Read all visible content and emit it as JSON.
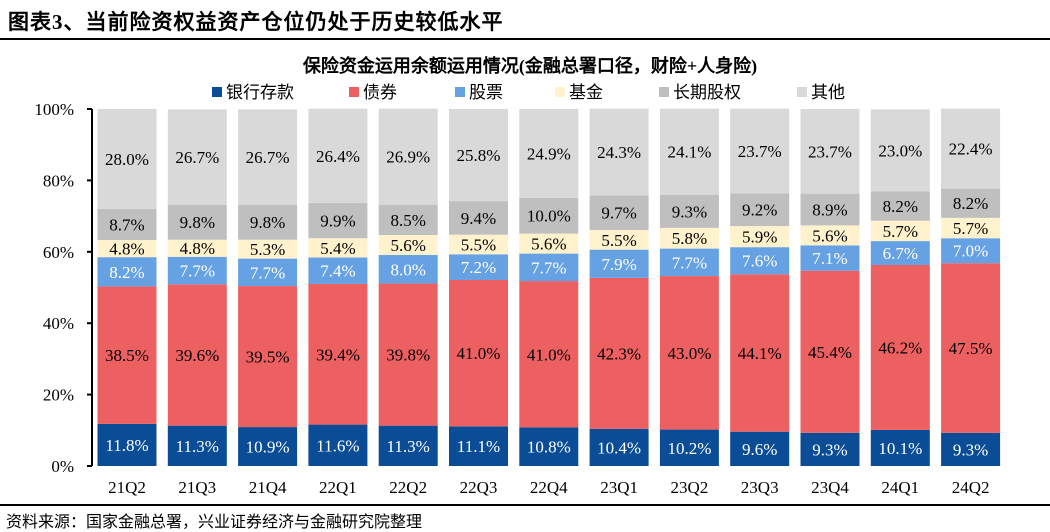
{
  "figure_title": "图表3、当前险资权益资产仓位仍处于历史较低水平",
  "source": "资料来源：国家金融总署，兴业证券经济与金融研究院整理",
  "chart_data": {
    "type": "bar",
    "stacked": true,
    "title": "保险资金运用余额运用情况(金融总署口径，财险+人身险)",
    "xlabel": "",
    "ylabel": "",
    "ylim": [
      0,
      100
    ],
    "yticks": [
      "0%",
      "20%",
      "40%",
      "60%",
      "80%",
      "100%"
    ],
    "legend_position": "top",
    "grid": false,
    "categories": [
      "21Q2",
      "21Q3",
      "21Q4",
      "22Q1",
      "22Q2",
      "22Q3",
      "22Q4",
      "23Q1",
      "23Q2",
      "23Q3",
      "23Q4",
      "24Q1",
      "24Q2"
    ],
    "series": [
      {
        "name": "银行存款",
        "color": "#0a4d96",
        "label_color": "#ffffff",
        "values": [
          11.8,
          11.3,
          10.9,
          11.6,
          11.3,
          11.1,
          10.8,
          10.4,
          10.2,
          9.6,
          9.3,
          10.1,
          9.3
        ]
      },
      {
        "name": "债券",
        "color": "#ec6061",
        "label_color": "#000000",
        "values": [
          38.5,
          39.6,
          39.5,
          39.4,
          39.8,
          41.0,
          41.0,
          42.3,
          43.0,
          44.1,
          45.4,
          46.2,
          47.5
        ]
      },
      {
        "name": "股票",
        "color": "#65a1e3",
        "label_color": "#ffffff",
        "values": [
          8.2,
          7.7,
          7.7,
          7.4,
          8.0,
          7.2,
          7.7,
          7.9,
          7.7,
          7.6,
          7.1,
          6.7,
          7.0
        ]
      },
      {
        "name": "基金",
        "color": "#fff2cc",
        "label_color": "#000000",
        "values": [
          4.8,
          4.8,
          5.3,
          5.4,
          5.6,
          5.5,
          5.6,
          5.5,
          5.8,
          5.9,
          5.6,
          5.7,
          5.7
        ]
      },
      {
        "name": "长期股权",
        "color": "#bfbfbf",
        "label_color": "#000000",
        "values": [
          8.7,
          9.8,
          9.8,
          9.9,
          8.5,
          9.4,
          10.0,
          9.7,
          9.3,
          9.2,
          8.9,
          8.2,
          8.2
        ]
      },
      {
        "name": "其他",
        "color": "#d9d9d9",
        "label_color": "#000000",
        "values": [
          28.0,
          26.7,
          26.7,
          26.4,
          26.9,
          25.8,
          24.9,
          24.3,
          24.1,
          23.7,
          23.7,
          23.0,
          22.4
        ]
      }
    ]
  }
}
